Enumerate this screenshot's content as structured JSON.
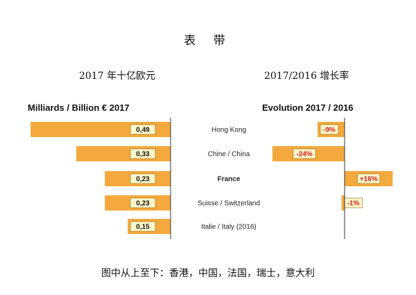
{
  "page": {
    "title": "表  带",
    "subtitle_left": "2017 年十亿欧元",
    "subtitle_right": "2017/2016 增长率",
    "caption": "图中从上至下：香港，中国，法国，瑞士，意大利"
  },
  "colors": {
    "bar": "#f4a93e",
    "bar_edge": "#e08f1e",
    "label_box": "#fff6c9",
    "label_box_edge": "#8a6a1a",
    "evo_text": "#d81e1e",
    "axis": "#333333"
  },
  "chart_data": [
    {
      "type": "bar",
      "orientation": "horizontal",
      "title": "Milliards / Billion € 2017",
      "categories": [
        "Hong Kong",
        "Chine / China",
        "France",
        "Suisse / Switzerland",
        "Italie / Italy  (2016)"
      ],
      "values": [
        0.49,
        0.33,
        0.23,
        0.23,
        0.15
      ],
      "labels": [
        "0,49",
        "0,33",
        "0,23",
        "0,23",
        "0,15"
      ],
      "bold_category": "France",
      "xlim": [
        0,
        0.5
      ]
    },
    {
      "type": "bar",
      "orientation": "horizontal",
      "title": "Evolution 2017 / 2016",
      "categories": [
        "Hong Kong",
        "Chine / China",
        "France",
        "Suisse / Switzerland",
        "Italie / Italy  (2016)"
      ],
      "values": [
        -9,
        -24,
        16,
        -1,
        null
      ],
      "labels": [
        "-9%",
        "-24%",
        "+16%",
        "-1%",
        ""
      ],
      "unit": "%",
      "xlim": [
        -24,
        16
      ]
    }
  ]
}
